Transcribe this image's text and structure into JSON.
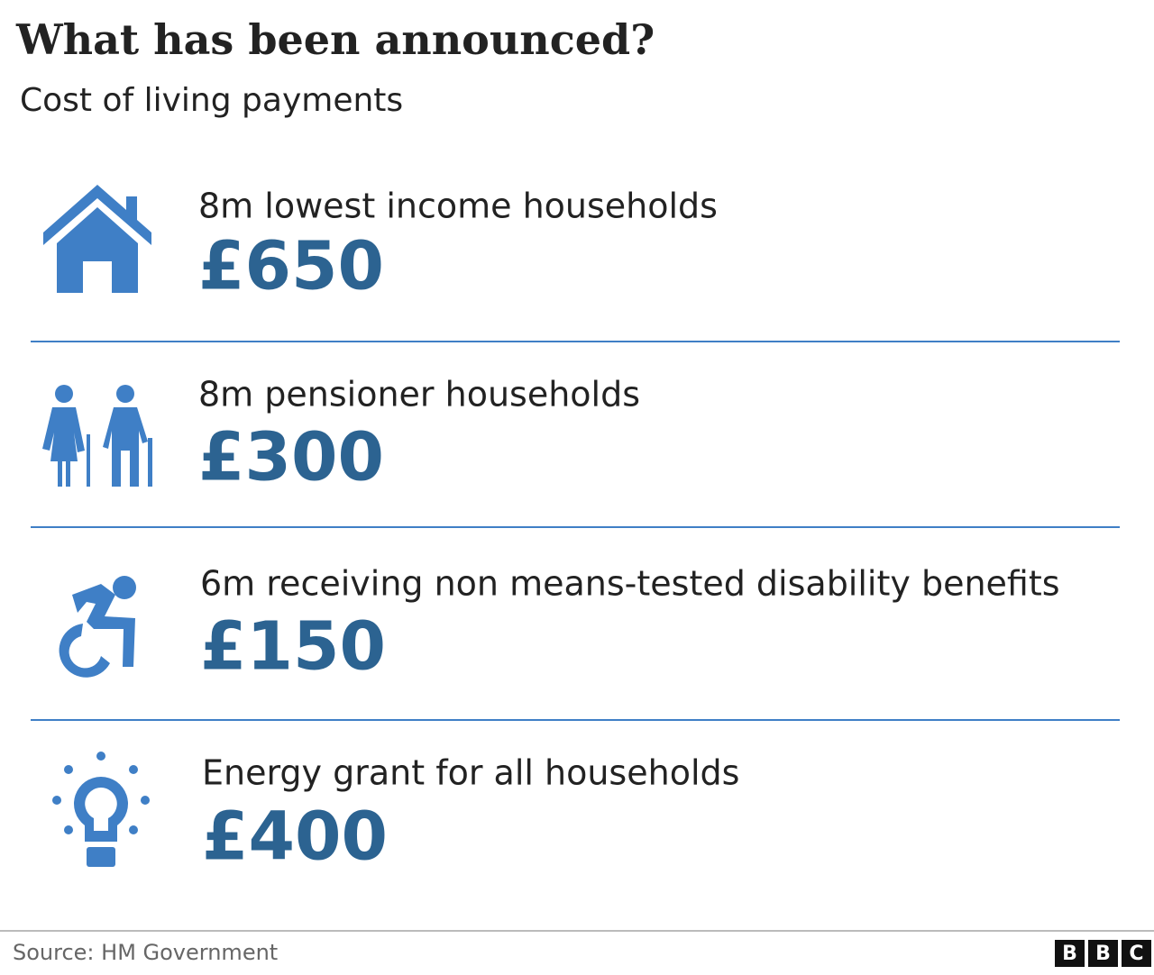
{
  "header": {
    "title": "What has been announced?",
    "subtitle": "Cost of living payments"
  },
  "items": [
    {
      "label": "8m lowest income households",
      "amount": "£650"
    },
    {
      "label": "8m pensioner households",
      "amount": "£300"
    },
    {
      "label": "6m receiving non means-tested disability benefits",
      "amount": "£150"
    },
    {
      "label": "Energy grant for all households",
      "amount": "£400"
    }
  ],
  "footer": {
    "source": "Source: HM Government",
    "logo": [
      "B",
      "B",
      "C"
    ]
  }
}
